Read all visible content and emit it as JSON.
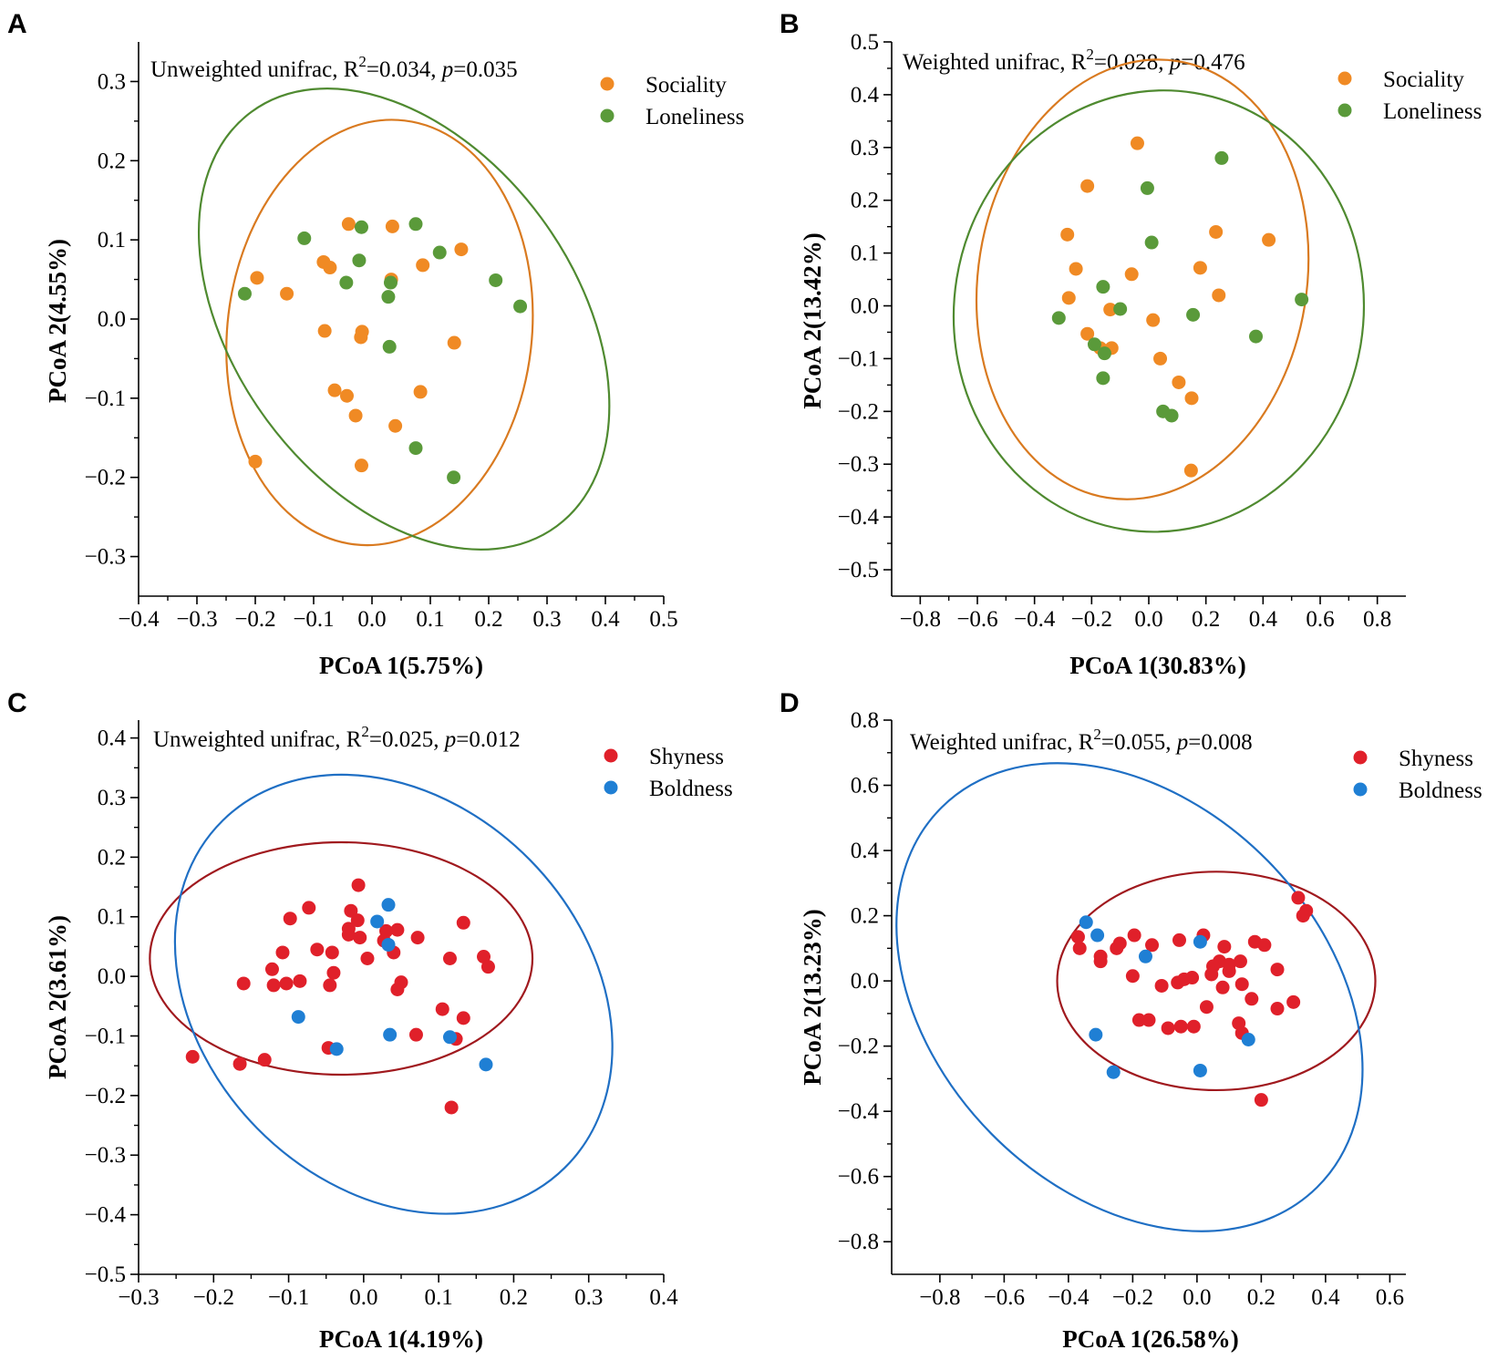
{
  "chart_data": [
    {
      "type": "scatter",
      "panel": "A",
      "annotation": {
        "prefix": "Unweighted unifrac, R",
        "sup": "2",
        "mid": "=0.034, ",
        "p": "p",
        "suffix": "=0.035"
      },
      "xlabel": "PCoA 1(5.75%)",
      "ylabel": "PCoA 2(4.55%)",
      "xlim": [
        -0.4,
        0.5
      ],
      "ylim": [
        -0.35,
        0.35
      ],
      "xticks": [
        -0.4,
        -0.3,
        -0.2,
        -0.1,
        0.0,
        0.1,
        0.2,
        0.3,
        0.4,
        0.5
      ],
      "xtick_labels": [
        "−0.4",
        "−0.3",
        "−0.2",
        "−0.1",
        "0.0",
        "0.1",
        "0.2",
        "0.3",
        "0.4",
        "0.5"
      ],
      "yticks": [
        -0.3,
        -0.2,
        -0.1,
        0.0,
        0.1,
        0.2,
        0.3
      ],
      "ytick_labels": [
        "−0.3",
        "−0.2",
        "−0.1",
        "0.0",
        "0.1",
        "0.2",
        "0.3"
      ],
      "legend_position": "top-right",
      "series": [
        {
          "name": "Sociality",
          "color": "#f08a24",
          "points": [
            [
              -0.04,
              0.12
            ],
            [
              0.035,
              0.117
            ],
            [
              -0.083,
              0.072
            ],
            [
              -0.072,
              0.065
            ],
            [
              -0.197,
              0.052
            ],
            [
              -0.146,
              0.032
            ],
            [
              0.033,
              0.05
            ],
            [
              0.087,
              0.068
            ],
            [
              0.153,
              0.088
            ],
            [
              -0.081,
              -0.015
            ],
            [
              -0.017,
              -0.016
            ],
            [
              -0.019,
              -0.023
            ],
            [
              0.141,
              -0.03
            ],
            [
              -0.064,
              -0.09
            ],
            [
              -0.043,
              -0.097
            ],
            [
              0.083,
              -0.092
            ],
            [
              -0.028,
              -0.122
            ],
            [
              0.04,
              -0.135
            ],
            [
              -0.2,
              -0.18
            ],
            [
              -0.018,
              -0.185
            ]
          ]
        },
        {
          "name": "Loneliness",
          "color": "#5a9a3a",
          "points": [
            [
              -0.116,
              0.102
            ],
            [
              -0.018,
              0.116
            ],
            [
              0.075,
              0.12
            ],
            [
              0.116,
              0.084
            ],
            [
              -0.022,
              0.074
            ],
            [
              -0.044,
              0.046
            ],
            [
              0.032,
              0.046
            ],
            [
              0.028,
              0.028
            ],
            [
              -0.218,
              0.032
            ],
            [
              0.212,
              0.049
            ],
            [
              0.254,
              0.016
            ],
            [
              0.03,
              -0.035
            ],
            [
              0.075,
              -0.163
            ],
            [
              0.14,
              -0.2
            ]
          ]
        }
      ],
      "ellipses": [
        {
          "series": "Sociality",
          "color": "#d97a20",
          "cx": 0.013,
          "cy": -0.017,
          "rx": 0.26,
          "ry": 0.27,
          "angle_deg": -5
        },
        {
          "series": "Loneliness",
          "color": "#4f8a30",
          "cx": 0.055,
          "cy": 0.0,
          "rx": 0.37,
          "ry": 0.245,
          "angle_deg": -45
        }
      ]
    },
    {
      "type": "scatter",
      "panel": "B",
      "annotation": {
        "prefix": "Weighted unifrac, R",
        "sup": "2",
        "mid": "=0.028, ",
        "p": "p",
        "suffix": "=0.476"
      },
      "xlabel": "PCoA 1(30.83%)",
      "ylabel": "PCoA 2(13.42%)",
      "xlim": [
        -0.9,
        0.9
      ],
      "ylim": [
        -0.55,
        0.5
      ],
      "xticks": [
        -0.8,
        -0.6,
        -0.4,
        -0.2,
        0.0,
        0.2,
        0.4,
        0.6,
        0.8
      ],
      "xtick_labels": [
        "−0.8",
        "−0.6",
        "−0.4",
        "−0.2",
        "0.0",
        "0.2",
        "0.4",
        "0.6",
        "0.8"
      ],
      "yticks": [
        -0.5,
        -0.4,
        -0.3,
        -0.2,
        -0.1,
        0.0,
        0.1,
        0.2,
        0.3,
        0.4,
        0.5
      ],
      "ytick_labels": [
        "−0.5",
        "−0.4",
        "−0.3",
        "−0.2",
        "−0.1",
        "0.0",
        "0.1",
        "0.2",
        "0.3",
        "0.4",
        "0.5"
      ],
      "legend_position": "top-right",
      "series": [
        {
          "name": "Sociality",
          "color": "#f08a24",
          "points": [
            [
              -0.04,
              0.308
            ],
            [
              -0.215,
              0.227
            ],
            [
              -0.285,
              0.135
            ],
            [
              0.235,
              0.14
            ],
            [
              0.42,
              0.125
            ],
            [
              -0.255,
              0.07
            ],
            [
              0.18,
              0.072
            ],
            [
              -0.06,
              0.06
            ],
            [
              -0.28,
              0.015
            ],
            [
              0.245,
              0.02
            ],
            [
              -0.135,
              -0.007
            ],
            [
              0.015,
              -0.027
            ],
            [
              -0.215,
              -0.053
            ],
            [
              -0.17,
              -0.08
            ],
            [
              -0.13,
              -0.08
            ],
            [
              0.04,
              -0.1
            ],
            [
              0.105,
              -0.145
            ],
            [
              0.15,
              -0.175
            ],
            [
              0.148,
              -0.312
            ]
          ]
        },
        {
          "name": "Loneliness",
          "color": "#5a9a3a",
          "points": [
            [
              0.255,
              0.28
            ],
            [
              -0.005,
              0.223
            ],
            [
              0.01,
              0.12
            ],
            [
              -0.16,
              0.036
            ],
            [
              0.535,
              0.012
            ],
            [
              -0.1,
              -0.006
            ],
            [
              0.155,
              -0.017
            ],
            [
              -0.315,
              -0.023
            ],
            [
              0.375,
              -0.058
            ],
            [
              -0.19,
              -0.073
            ],
            [
              -0.155,
              -0.09
            ],
            [
              -0.16,
              -0.137
            ],
            [
              0.05,
              -0.2
            ],
            [
              0.08,
              -0.208
            ]
          ]
        }
      ],
      "ellipses": [
        {
          "series": "Sociality",
          "color": "#d97a20",
          "cx": -0.022,
          "cy": 0.05,
          "rx": 0.57,
          "ry": 0.42,
          "angle_deg": -5
        },
        {
          "series": "Loneliness",
          "color": "#4f8a30",
          "cx": 0.035,
          "cy": -0.01,
          "rx": 0.71,
          "ry": 0.42,
          "angle_deg": -5
        }
      ]
    },
    {
      "type": "scatter",
      "panel": "C",
      "annotation": {
        "prefix": "Unweighted unifrac, R",
        "sup": "2",
        "mid": "=0.025, ",
        "p": "p",
        "suffix": "=0.012"
      },
      "xlabel": "PCoA 1(4.19%)",
      "ylabel": "PCoA 2(3.61%)",
      "xlim": [
        -0.3,
        0.4
      ],
      "ylim": [
        -0.5,
        0.43
      ],
      "xticks": [
        -0.3,
        -0.2,
        -0.1,
        0.0,
        0.1,
        0.2,
        0.3,
        0.4
      ],
      "xtick_labels": [
        "−0.3",
        "−0.2",
        "−0.1",
        "0.0",
        "0.1",
        "0.2",
        "0.3",
        "0.4"
      ],
      "yticks": [
        -0.5,
        -0.4,
        -0.3,
        -0.2,
        -0.1,
        0.0,
        0.1,
        0.2,
        0.3,
        0.4
      ],
      "ytick_labels": [
        "−0.5",
        "−0.4",
        "−0.3",
        "−0.2",
        "−0.1",
        "0.0",
        "0.1",
        "0.2",
        "0.3",
        "0.4"
      ],
      "legend_position": "top-right",
      "series": [
        {
          "name": "Shyness",
          "color": "#e0202a",
          "points": [
            [
              -0.007,
              0.153
            ],
            [
              -0.073,
              0.115
            ],
            [
              -0.017,
              0.11
            ],
            [
              -0.098,
              0.097
            ],
            [
              -0.008,
              0.094
            ],
            [
              0.133,
              0.09
            ],
            [
              -0.02,
              0.08
            ],
            [
              0.03,
              0.076
            ],
            [
              0.045,
              0.078
            ],
            [
              -0.02,
              0.07
            ],
            [
              -0.005,
              0.065
            ],
            [
              0.072,
              0.065
            ],
            [
              0.027,
              0.06
            ],
            [
              -0.062,
              0.045
            ],
            [
              0.04,
              0.04
            ],
            [
              -0.108,
              0.04
            ],
            [
              -0.042,
              0.04
            ],
            [
              0.005,
              0.03
            ],
            [
              0.115,
              0.03
            ],
            [
              0.16,
              0.033
            ],
            [
              -0.122,
              0.012
            ],
            [
              0.166,
              0.016
            ],
            [
              -0.04,
              0.006
            ],
            [
              -0.085,
              -0.008
            ],
            [
              -0.16,
              -0.012
            ],
            [
              -0.12,
              -0.015
            ],
            [
              -0.103,
              -0.012
            ],
            [
              0.05,
              -0.01
            ],
            [
              -0.045,
              -0.015
            ],
            [
              0.045,
              -0.022
            ],
            [
              0.105,
              -0.055
            ],
            [
              0.133,
              -0.07
            ],
            [
              0.07,
              -0.098
            ],
            [
              -0.047,
              -0.12
            ],
            [
              0.123,
              -0.105
            ],
            [
              -0.228,
              -0.135
            ],
            [
              -0.165,
              -0.147
            ],
            [
              -0.132,
              -0.14
            ],
            [
              0.117,
              -0.22
            ]
          ]
        },
        {
          "name": "Boldness",
          "color": "#1f7fd4",
          "points": [
            [
              0.033,
              0.12
            ],
            [
              0.018,
              0.092
            ],
            [
              0.033,
              0.053
            ],
            [
              -0.087,
              -0.068
            ],
            [
              -0.036,
              -0.122
            ],
            [
              0.035,
              -0.098
            ],
            [
              0.115,
              -0.102
            ],
            [
              0.163,
              -0.148
            ]
          ]
        }
      ],
      "ellipses": [
        {
          "series": "Shyness",
          "color": "#a0191e",
          "cx": -0.03,
          "cy": 0.03,
          "rx": 0.255,
          "ry": 0.195,
          "angle_deg": 0
        },
        {
          "series": "Boldness",
          "color": "#1f6fc4",
          "cx": 0.04,
          "cy": -0.03,
          "rx": 0.37,
          "ry": 0.275,
          "angle_deg": -52
        }
      ]
    },
    {
      "type": "scatter",
      "panel": "D",
      "annotation": {
        "prefix": "Weighted unifrac, R",
        "sup": "2",
        "mid": "=0.055, ",
        "p": "p",
        "suffix": "=0.008"
      },
      "xlabel": "PCoA 1(26.58%)",
      "ylabel": "PCoA 2(13.23%)",
      "xlim": [
        -0.95,
        0.65
      ],
      "ylim": [
        -0.9,
        0.8
      ],
      "xticks": [
        -0.8,
        -0.6,
        -0.4,
        -0.2,
        0.0,
        0.2,
        0.4,
        0.6
      ],
      "xtick_labels": [
        "−0.8",
        "−0.6",
        "−0.4",
        "−0.2",
        "0.0",
        "0.2",
        "0.4",
        "0.6"
      ],
      "yticks": [
        -0.8,
        -0.6,
        -0.4,
        -0.2,
        0.0,
        0.2,
        0.4,
        0.6,
        0.8
      ],
      "ytick_labels": [
        "−0.8",
        "−0.6",
        "−0.4",
        "−0.2",
        "0.0",
        "0.2",
        "0.4",
        "0.6",
        "0.8"
      ],
      "legend_position": "top-right",
      "series": [
        {
          "name": "Shyness",
          "color": "#e0202a",
          "points": [
            [
              0.315,
              0.255
            ],
            [
              0.34,
              0.215
            ],
            [
              0.33,
              0.2
            ],
            [
              -0.37,
              0.135
            ],
            [
              -0.24,
              0.115
            ],
            [
              -0.195,
              0.14
            ],
            [
              -0.3,
              0.075
            ],
            [
              -0.365,
              0.1
            ],
            [
              -0.25,
              0.1
            ],
            [
              -0.055,
              0.125
            ],
            [
              0.02,
              0.14
            ],
            [
              0.085,
              0.105
            ],
            [
              0.18,
              0.12
            ],
            [
              0.21,
              0.11
            ],
            [
              -0.14,
              0.11
            ],
            [
              0.07,
              0.06
            ],
            [
              0.1,
              0.05
            ],
            [
              0.135,
              0.06
            ],
            [
              0.25,
              0.035
            ],
            [
              0.05,
              0.045
            ],
            [
              -0.3,
              0.06
            ],
            [
              -0.2,
              0.015
            ],
            [
              -0.11,
              -0.015
            ],
            [
              -0.06,
              -0.005
            ],
            [
              -0.04,
              0.005
            ],
            [
              -0.015,
              0.01
            ],
            [
              0.045,
              0.02
            ],
            [
              0.1,
              0.03
            ],
            [
              0.14,
              -0.01
            ],
            [
              0.08,
              -0.02
            ],
            [
              0.25,
              -0.085
            ],
            [
              0.3,
              -0.065
            ],
            [
              0.17,
              -0.055
            ],
            [
              -0.18,
              -0.12
            ],
            [
              -0.15,
              -0.12
            ],
            [
              -0.09,
              -0.145
            ],
            [
              -0.05,
              -0.14
            ],
            [
              -0.01,
              -0.14
            ],
            [
              0.13,
              -0.13
            ],
            [
              0.14,
              -0.16
            ],
            [
              0.2,
              -0.365
            ],
            [
              0.03,
              -0.08
            ]
          ]
        },
        {
          "name": "Boldness",
          "color": "#1f7fd4",
          "points": [
            [
              -0.345,
              0.18
            ],
            [
              -0.31,
              0.14
            ],
            [
              0.01,
              0.12
            ],
            [
              -0.16,
              0.075
            ],
            [
              -0.315,
              -0.165
            ],
            [
              0.16,
              -0.18
            ],
            [
              -0.26,
              -0.28
            ],
            [
              0.01,
              -0.275
            ]
          ]
        }
      ],
      "ellipses": [
        {
          "series": "Shyness",
          "color": "#a0191e",
          "cx": 0.06,
          "cy": 0.0,
          "rx": 0.495,
          "ry": 0.335,
          "angle_deg": 0
        },
        {
          "series": "Boldness",
          "color": "#1f6fc4",
          "cx": -0.21,
          "cy": -0.05,
          "rx": 0.825,
          "ry": 0.6,
          "angle_deg": -45
        }
      ]
    }
  ]
}
